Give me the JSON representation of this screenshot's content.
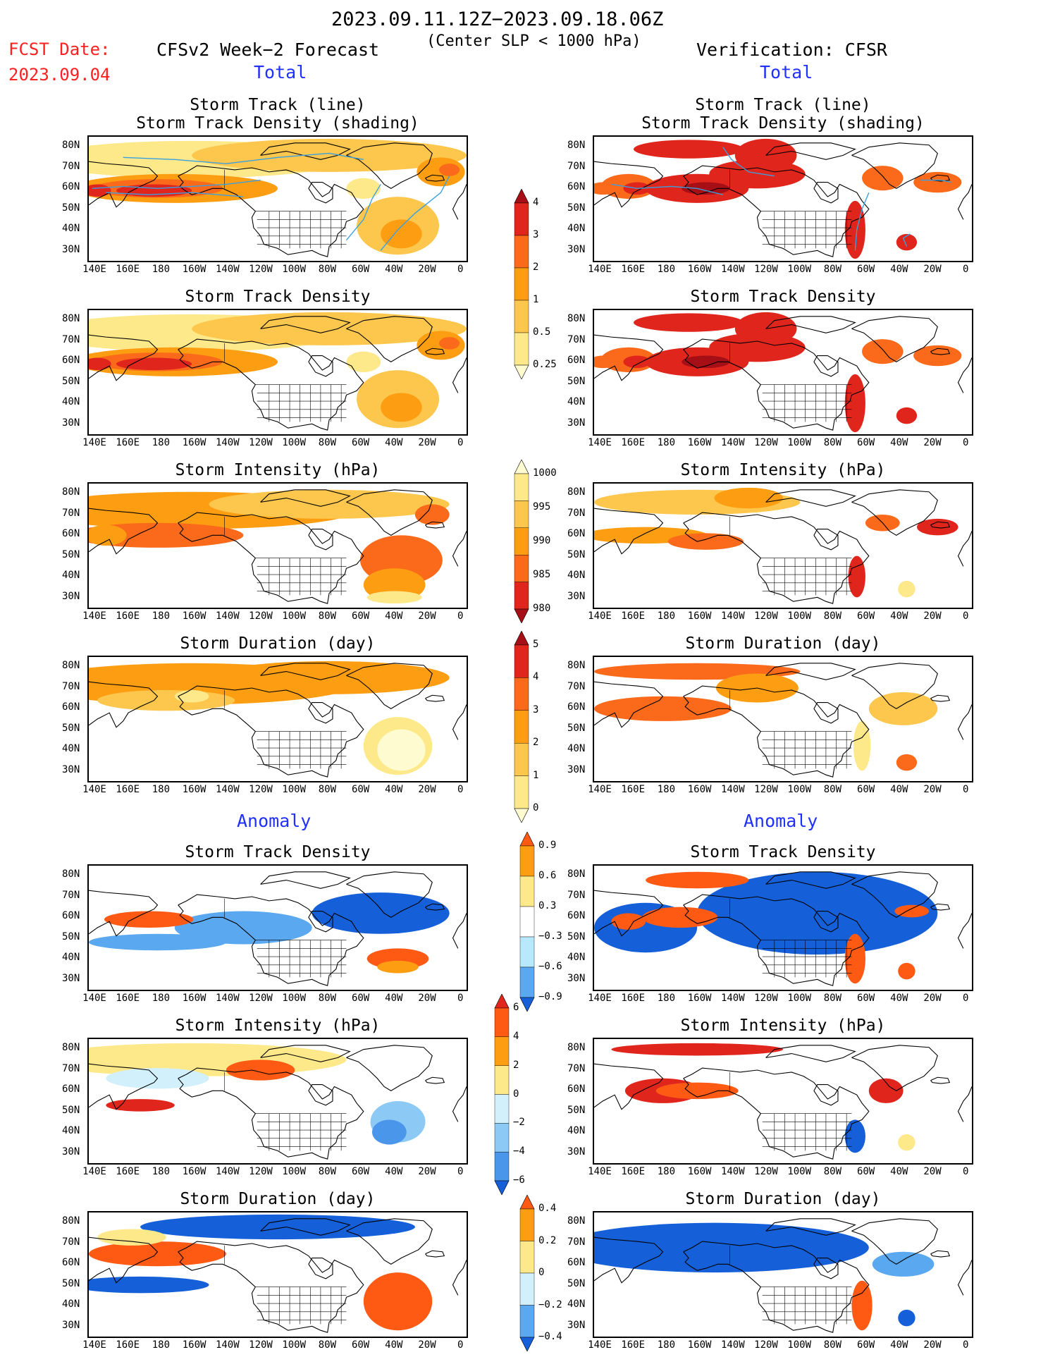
{
  "header": {
    "period": "2023.09.11.12Z−2023.09.18.06Z",
    "fcst_date_label": "FCST Date:",
    "fcst_date_value": "2023.09.04",
    "model": "CFSv2 Week−2 Forecast",
    "criterion": "(Center SLP < 1000 hPa)",
    "verification": "Verification: CFSR",
    "total_left": "Total",
    "total_right": "Total",
    "anomaly_left": "Anomaly",
    "anomaly_right": "Anomaly"
  },
  "axes": {
    "lat_labels": [
      "80N",
      "70N",
      "60N",
      "50N",
      "40N",
      "30N"
    ],
    "lon_labels": [
      "140E",
      "160E",
      "180",
      "160W",
      "140W",
      "120W",
      "100W",
      "80W",
      "60W",
      "40W",
      "20W",
      "0"
    ]
  },
  "panels": [
    {
      "title_line1": "Storm Track (line)",
      "title_line2": "Storm Track Density (shading)"
    },
    {
      "title_line1": "Storm Track (line)",
      "title_line2": "Storm Track Density (shading)"
    },
    {
      "title_line1": "Storm Track Density",
      "title_line2": ""
    },
    {
      "title_line1": "Storm Track Density",
      "title_line2": ""
    },
    {
      "title_line1": "Storm Intensity (hPa)",
      "title_line2": ""
    },
    {
      "title_line1": "Storm Intensity (hPa)",
      "title_line2": ""
    },
    {
      "title_line1": "Storm Duration (day)",
      "title_line2": ""
    },
    {
      "title_line1": "Storm Duration (day)",
      "title_line2": ""
    },
    {
      "title_line1": "Storm Track Density",
      "title_line2": ""
    },
    {
      "title_line1": "Storm Track Density",
      "title_line2": ""
    },
    {
      "title_line1": "Storm Intensity (hPa)",
      "title_line2": ""
    },
    {
      "title_line1": "Storm Intensity (hPa)",
      "title_line2": ""
    },
    {
      "title_line1": "Storm Duration (day)",
      "title_line2": ""
    },
    {
      "title_line1": "Storm Duration (day)",
      "title_line2": ""
    }
  ],
  "colorbars": [
    {
      "name": "track-density",
      "labels": [
        "4",
        "3",
        "2",
        "1",
        "0.5",
        "0.25"
      ],
      "colors": [
        "#a50f15",
        "#e0261c",
        "#fb6a1a",
        "#fd9e12",
        "#fdc64d",
        "#fde98a",
        "#fffbd0"
      ]
    },
    {
      "name": "intensity",
      "labels": [
        "1000",
        "995",
        "990",
        "985",
        "980"
      ],
      "colors": [
        "#fffbd0",
        "#fde98a",
        "#fdc64d",
        "#fd9e12",
        "#fb6a1a",
        "#e0261c",
        "#a50f15"
      ]
    },
    {
      "name": "duration",
      "labels": [
        "5",
        "4",
        "3",
        "2",
        "1",
        "0"
      ],
      "colors": [
        "#a50f15",
        "#e0261c",
        "#fb6a1a",
        "#fd9e12",
        "#fdc64d",
        "#fde98a",
        "#fffbd0"
      ]
    },
    {
      "name": "density-anomaly",
      "labels": [
        "0.9",
        "0.6",
        "0.3",
        "−0.3",
        "−0.6",
        "−0.9"
      ],
      "colors": [
        "#ff5a14",
        "#fd9e12",
        "#fde98a",
        "#ffffff",
        "#b8e8fb",
        "#5aa8f0",
        "#1560d8"
      ]
    },
    {
      "name": "intensity-anomaly",
      "labels": [
        "6",
        "4",
        "2",
        "0",
        "−2",
        "−4",
        "−6"
      ],
      "colors": [
        "#e0261c",
        "#ff5a14",
        "#fd9e12",
        "#fde98a",
        "#d2f0fc",
        "#8ccaf5",
        "#4a96ea",
        "#1560d8"
      ]
    },
    {
      "name": "duration-anomaly",
      "labels": [
        "0.4",
        "0.2",
        "0",
        "−0.2",
        "−0.4"
      ],
      "colors": [
        "#ff5a14",
        "#fd9e12",
        "#fde98a",
        "#d2f0fc",
        "#5aa8f0",
        "#1560d8"
      ]
    }
  ],
  "colors": {
    "ocean": "#ffffff",
    "land_outline": "#000000",
    "track_line": "#39a0e0"
  }
}
